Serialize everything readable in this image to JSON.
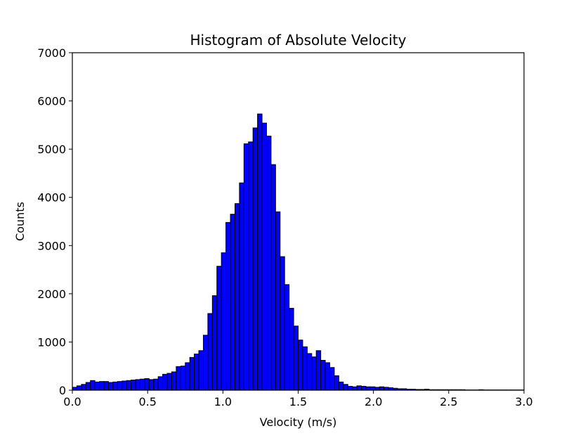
{
  "chart_data": {
    "type": "bar",
    "title": "Histogram of Absolute Velocity",
    "xlabel": "Velocity (m/s)",
    "ylabel": "Counts",
    "xlim": [
      0.0,
      3.0
    ],
    "ylim": [
      0,
      7000
    ],
    "xticks": [
      "0.0",
      "0.5",
      "1.0",
      "1.5",
      "2.0",
      "2.5",
      "3.0"
    ],
    "yticks": [
      "0",
      "1000",
      "2000",
      "3000",
      "4000",
      "5000",
      "6000",
      "7000"
    ],
    "bin_width": 0.03,
    "bar_color": "#0000ff",
    "edge_color": "#000000",
    "grid": false,
    "legend": "none",
    "series": [
      {
        "bin_start": [
          0.0,
          0.03,
          0.06,
          0.09,
          0.12,
          0.15,
          0.18,
          0.21,
          0.24,
          0.27,
          0.3,
          0.33,
          0.36,
          0.39,
          0.42,
          0.45,
          0.48,
          0.51,
          0.54,
          0.57,
          0.6,
          0.63,
          0.66,
          0.69,
          0.72,
          0.75,
          0.78,
          0.81,
          0.84,
          0.87,
          0.9,
          0.93,
          0.96,
          0.99,
          1.02,
          1.05,
          1.08,
          1.11,
          1.14,
          1.17,
          1.2,
          1.23,
          1.26,
          1.29,
          1.32,
          1.35,
          1.38,
          1.41,
          1.44,
          1.47,
          1.5,
          1.53,
          1.56,
          1.59,
          1.62,
          1.65,
          1.68,
          1.71,
          1.74,
          1.77,
          1.8,
          1.83,
          1.86,
          1.89,
          1.92,
          1.95,
          1.98,
          2.01,
          2.04,
          2.07,
          2.1,
          2.13,
          2.16,
          2.19,
          2.22,
          2.25,
          2.28,
          2.31,
          2.34,
          2.37,
          2.4,
          2.43,
          2.46,
          2.49,
          2.52,
          2.55,
          2.58,
          2.61,
          2.64,
          2.67,
          2.7,
          2.73,
          2.76,
          2.79,
          2.82,
          2.85,
          2.88,
          2.91,
          2.94,
          2.97
        ],
        "values": [
          60,
          90,
          120,
          160,
          200,
          170,
          180,
          180,
          160,
          170,
          180,
          190,
          200,
          210,
          220,
          230,
          240,
          220,
          230,
          280,
          330,
          350,
          380,
          490,
          500,
          570,
          680,
          750,
          820,
          1140,
          1590,
          1960,
          2570,
          2850,
          3480,
          3650,
          3870,
          4300,
          5110,
          5150,
          5440,
          5730,
          5540,
          5270,
          4680,
          3700,
          2770,
          2190,
          1700,
          1330,
          1040,
          900,
          760,
          690,
          820,
          620,
          570,
          470,
          300,
          170,
          120,
          80,
          70,
          90,
          80,
          70,
          70,
          60,
          70,
          60,
          50,
          40,
          30,
          30,
          20,
          20,
          15,
          15,
          20,
          10,
          10,
          10,
          10,
          10,
          10,
          10,
          10,
          5,
          5,
          5,
          10,
          5,
          5,
          5,
          5,
          5,
          5,
          5,
          5,
          5
        ]
      }
    ]
  }
}
